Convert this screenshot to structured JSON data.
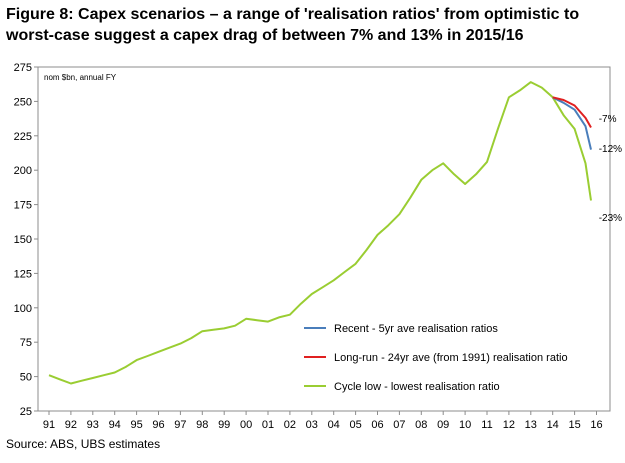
{
  "title": "Figure 8: Capex scenarios – a range of 'realisation ratios' from optimistic to worst-case suggest a capex drag of between 7% and 13% in 2015/16",
  "source": "Source: ABS, UBS estimates",
  "chart_data": {
    "type": "line",
    "unit_note": "nom $bn, annual FY",
    "ylim": [
      25,
      275
    ],
    "yticks": [
      25,
      50,
      75,
      100,
      125,
      150,
      175,
      200,
      225,
      250,
      275
    ],
    "xlim": [
      1991,
      2016
    ],
    "xticks": [
      1991,
      1992,
      1993,
      1994,
      1995,
      1996,
      1997,
      1998,
      1999,
      2000,
      2001,
      2002,
      2003,
      2004,
      2005,
      2006,
      2007,
      2008,
      2009,
      2010,
      2011,
      2012,
      2013,
      2014,
      2015,
      2016
    ],
    "xtick_labels": [
      "91",
      "92",
      "93",
      "94",
      "95",
      "96",
      "97",
      "98",
      "99",
      "00",
      "01",
      "02",
      "03",
      "04",
      "05",
      "06",
      "07",
      "08",
      "09",
      "10",
      "11",
      "12",
      "13",
      "14",
      "15",
      "16"
    ],
    "grid": false,
    "legend_position": "bottom-right",
    "series": [
      {
        "name": "Cycle low - lowest realisation ratio",
        "color": "#9acd32",
        "x": [
          1991.0,
          1991.5,
          1992.0,
          1992.5,
          1993.0,
          1993.5,
          1994.0,
          1994.5,
          1995.0,
          1995.5,
          1996.0,
          1996.5,
          1997.0,
          1997.5,
          1998.0,
          1998.5,
          1999.0,
          1999.5,
          2000.0,
          2000.5,
          2001.0,
          2001.5,
          2002.0,
          2002.5,
          2003.0,
          2003.5,
          2004.0,
          2004.5,
          2005.0,
          2005.5,
          2006.0,
          2006.5,
          2007.0,
          2007.5,
          2008.0,
          2008.5,
          2009.0,
          2009.5,
          2010.0,
          2010.5,
          2011.0,
          2011.5,
          2012.0,
          2012.5,
          2013.0,
          2013.5,
          2014.0,
          2014.5,
          2015.0,
          2015.5,
          2015.75
        ],
        "y": [
          51,
          48,
          45,
          47,
          49,
          51,
          53,
          57,
          62,
          65,
          68,
          71,
          74,
          78,
          83,
          84,
          85,
          87,
          92,
          91,
          90,
          93,
          95,
          103,
          110,
          115,
          120,
          126,
          132,
          142,
          153,
          160,
          168,
          180,
          193,
          200,
          205,
          197,
          190,
          197,
          206,
          230,
          253,
          258,
          264,
          260,
          253,
          240,
          230,
          205,
          178
        ]
      },
      {
        "name": "Recent - 5yr ave realisation ratios",
        "color": "#4a7ebb",
        "x": [
          2014.0,
          2014.5,
          2015.0,
          2015.5,
          2015.75
        ],
        "y": [
          253,
          249,
          244,
          232,
          215
        ]
      },
      {
        "name": "Long-run - 24yr ave (from 1991) realisation ratio",
        "color": "#e02020",
        "x": [
          2014.0,
          2014.5,
          2015.0,
          2015.5,
          2015.75
        ],
        "y": [
          253,
          251,
          247,
          238,
          231
        ]
      }
    ],
    "annotations": [
      {
        "text": "-7%",
        "x": 2016.1,
        "y": 238
      },
      {
        "text": "-12%",
        "x": 2016.1,
        "y": 216
      },
      {
        "text": "-23%",
        "x": 2016.1,
        "y": 166
      }
    ]
  }
}
